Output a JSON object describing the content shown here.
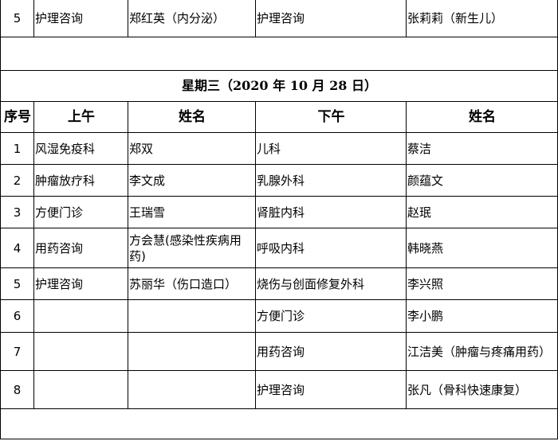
{
  "top_row": {
    "no": "5",
    "am": "护理咨询",
    "am_name": "郑红英（内分泌）",
    "pm": "护理咨询",
    "pm_name": "张莉莉（新生儿）"
  },
  "section_title": "星期三（2020 年 10 月 28 日）",
  "headers": {
    "no": "序号",
    "am": "上午",
    "am_name": "姓名",
    "pm": "下午",
    "pm_name": "姓名"
  },
  "rows": [
    {
      "no": "1",
      "am": "风湿免疫科",
      "am_name": "郑双",
      "pm": "儿科",
      "pm_name": "蔡洁"
    },
    {
      "no": "2",
      "am": "肿瘤放疗科",
      "am_name": "李文成",
      "pm": "乳腺外科",
      "pm_name": "颜蕴文"
    },
    {
      "no": "3",
      "am": "方便门诊",
      "am_name": "王瑞雪",
      "pm": "肾脏内科",
      "pm_name": "赵珉"
    },
    {
      "no": "4",
      "am": "用药咨询",
      "am_name": "方会慧(感染性疾病用药)",
      "pm": "呼吸内科",
      "pm_name": "韩晓燕"
    },
    {
      "no": "5",
      "am": "护理咨询",
      "am_name": "苏丽华（伤口造口）",
      "pm": "烧伤与创面修复外科",
      "pm_name": "李兴照"
    },
    {
      "no": "6",
      "am": "",
      "am_name": "",
      "pm": "方便门诊",
      "pm_name": "李小鹏"
    },
    {
      "no": "7",
      "am": "",
      "am_name": "",
      "pm": "用药咨询",
      "pm_name": "江洁美（肿瘤与疼痛用药）"
    },
    {
      "no": "8",
      "am": "",
      "am_name": "",
      "pm": "护理咨询",
      "pm_name": "张凡（骨科快速康复）"
    }
  ]
}
